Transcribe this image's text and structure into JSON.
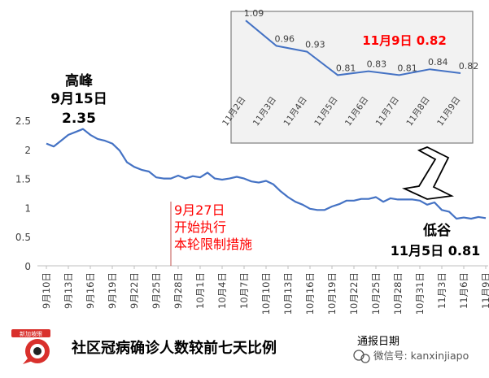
{
  "chart_data": [
    {
      "type": "line",
      "title": "社区冠病确诊人数较前七天比例",
      "xlabel": "通报日期",
      "ylabel": "",
      "ylim": [
        0,
        2.5
      ],
      "yticks": [
        "0",
        "0.5",
        "1",
        "1.5",
        "2",
        "2.5"
      ],
      "xtick_labels": [
        "9月10日",
        "9月13日",
        "9月16日",
        "9月19日",
        "9月22日",
        "9月25日",
        "9月28日",
        "10月1日",
        "10月4日",
        "10月7日",
        "10月10日",
        "10月13日",
        "10月16日",
        "10月19日",
        "10月22日",
        "10月25日",
        "10月28日",
        "10月31日",
        "11月3日",
        "11月6日",
        "11月9日"
      ],
      "x": [
        "9月10日",
        "9月11日",
        "9月12日",
        "9月13日",
        "9月14日",
        "9月15日",
        "9月16日",
        "9月17日",
        "9月18日",
        "9月19日",
        "9月20日",
        "9月21日",
        "9月22日",
        "9月23日",
        "9月24日",
        "9月25日",
        "9月26日",
        "9月27日",
        "9月28日",
        "9月29日",
        "9月30日",
        "10月1日",
        "10月2日",
        "10月3日",
        "10月4日",
        "10月5日",
        "10月6日",
        "10月7日",
        "10月8日",
        "10月9日",
        "10月10日",
        "10月11日",
        "10月12日",
        "10月13日",
        "10月14日",
        "10月15日",
        "10月16日",
        "10月17日",
        "10月18日",
        "10月19日",
        "10月20日",
        "10月21日",
        "10月22日",
        "10月23日",
        "10月24日",
        "10月25日",
        "10月26日",
        "10月27日",
        "10月28日",
        "10月29日",
        "10月30日",
        "10月31日",
        "11月1日",
        "11月2日",
        "11月3日",
        "11月4日",
        "11月5日",
        "11月6日",
        "11月7日",
        "11月8日",
        "11月9日"
      ],
      "values": [
        2.1,
        2.05,
        2.15,
        2.25,
        2.3,
        2.35,
        2.25,
        2.18,
        2.15,
        2.1,
        1.98,
        1.78,
        1.7,
        1.65,
        1.62,
        1.52,
        1.5,
        1.5,
        1.55,
        1.5,
        1.54,
        1.52,
        1.6,
        1.5,
        1.48,
        1.5,
        1.53,
        1.5,
        1.45,
        1.43,
        1.46,
        1.4,
        1.28,
        1.18,
        1.1,
        1.05,
        0.98,
        0.96,
        0.96,
        1.02,
        1.06,
        1.12,
        1.12,
        1.15,
        1.15,
        1.18,
        1.1,
        1.16,
        1.14,
        1.14,
        1.14,
        1.12,
        1.05,
        1.09,
        0.96,
        0.93,
        0.81,
        0.83,
        0.81,
        0.84,
        0.82
      ],
      "grid": false,
      "annotations": [
        {
          "lines": [
            "高峰",
            "9月15日",
            "2.35"
          ]
        },
        {
          "lines": [
            "9月27日",
            "开始执行",
            "本轮限制措施"
          ]
        },
        {
          "lines": [
            "低谷",
            "11月5日  0.81"
          ]
        }
      ]
    },
    {
      "type": "line",
      "title": "11月9日 0.82",
      "x": [
        "11月2日",
        "11月3日",
        "11月4日",
        "11月5日",
        "11月6日",
        "11月7日",
        "11月8日",
        "11月9日"
      ],
      "values": [
        1.09,
        0.96,
        0.93,
        0.81,
        0.83,
        0.81,
        0.84,
        0.82
      ],
      "data_labels": [
        "1.09",
        "0.96",
        "0.93",
        "0.81",
        "0.83",
        "0.81",
        "0.84",
        "0.82"
      ]
    }
  ],
  "footer": {
    "logo_text": "新加坡眼",
    "wechat": "微信号: kanxinjiapo"
  },
  "colors": {
    "line": "#4472C4",
    "highlight": "#FF0000",
    "marker_line": "#C0504D",
    "inset_bg": "#F2F2F2"
  }
}
